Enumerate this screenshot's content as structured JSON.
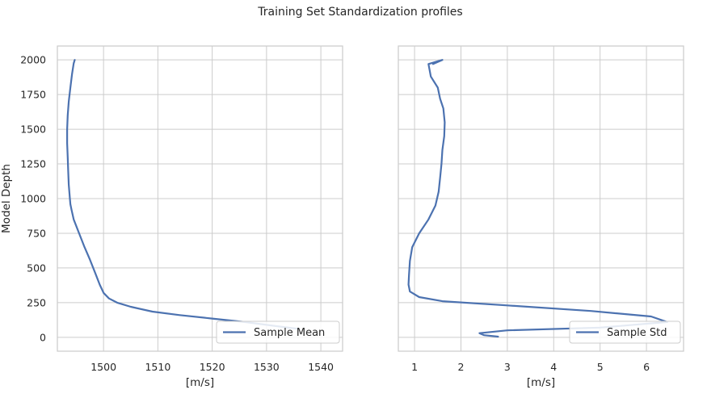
{
  "figure": {
    "title": "Training Set Standardization profiles"
  },
  "chart_data": [
    {
      "type": "line",
      "xlabel": "[m/s]",
      "ylabel": "Model Depth",
      "xlim": [
        1491.5,
        1544
      ],
      "ylim": [
        -100,
        2100
      ],
      "xticks": [
        "1500",
        "1510",
        "1520",
        "1530",
        "1540"
      ],
      "yticks": [
        "0",
        "250",
        "500",
        "750",
        "1000",
        "1250",
        "1500",
        "1750",
        "2000"
      ],
      "grid": true,
      "legend_position": "lower-right",
      "color": "#4c72b0",
      "series": [
        {
          "name": "Sample Mean",
          "x": [
            1494.7,
            1494.5,
            1494.2,
            1493.9,
            1493.6,
            1493.4,
            1493.3,
            1493.3,
            1493.4,
            1493.5,
            1493.6,
            1493.7,
            1493.8,
            1493.9,
            1494.1,
            1494.5,
            1495.5,
            1496.5,
            1497.5,
            1498.5,
            1499.3,
            1500.0,
            1501.0,
            1502.5,
            1505.0,
            1509.0,
            1514.0,
            1520.0,
            1526.0,
            1532.0,
            1536.0
          ],
          "y": [
            2000,
            1975,
            1900,
            1800,
            1700,
            1600,
            1500,
            1400,
            1300,
            1200,
            1100,
            1050,
            1000,
            960,
            920,
            850,
            750,
            650,
            560,
            460,
            380,
            320,
            280,
            250,
            220,
            185,
            160,
            135,
            110,
            80,
            60
          ]
        }
      ]
    },
    {
      "type": "line",
      "xlabel": "[m/s]",
      "ylabel": "",
      "xlim": [
        0.65,
        6.8
      ],
      "ylim": [
        -100,
        2100
      ],
      "xticks": [
        "1",
        "2",
        "3",
        "4",
        "5",
        "6"
      ],
      "yticks": [
        "0",
        "250",
        "500",
        "750",
        "1000",
        "1250",
        "1500",
        "1750",
        "2000"
      ],
      "grid": true,
      "legend_position": "lower-right",
      "color": "#4c72b0",
      "series": [
        {
          "name": "Sample Std",
          "x": [
            1.4,
            1.6,
            1.3,
            1.35,
            1.5,
            1.55,
            1.62,
            1.65,
            1.64,
            1.6,
            1.58,
            1.55,
            1.52,
            1.45,
            1.3,
            1.1,
            0.95,
            0.9,
            0.88,
            0.87,
            0.9,
            1.1,
            1.6,
            3.0,
            4.8,
            6.1,
            6.45,
            5.0,
            3.0,
            2.4,
            2.5,
            2.8
          ],
          "y": [
            1970,
            2000,
            1970,
            1880,
            1800,
            1720,
            1650,
            1550,
            1450,
            1350,
            1250,
            1150,
            1050,
            950,
            850,
            750,
            650,
            550,
            450,
            380,
            330,
            290,
            260,
            230,
            190,
            150,
            110,
            70,
            50,
            30,
            15,
            5
          ]
        }
      ]
    }
  ]
}
